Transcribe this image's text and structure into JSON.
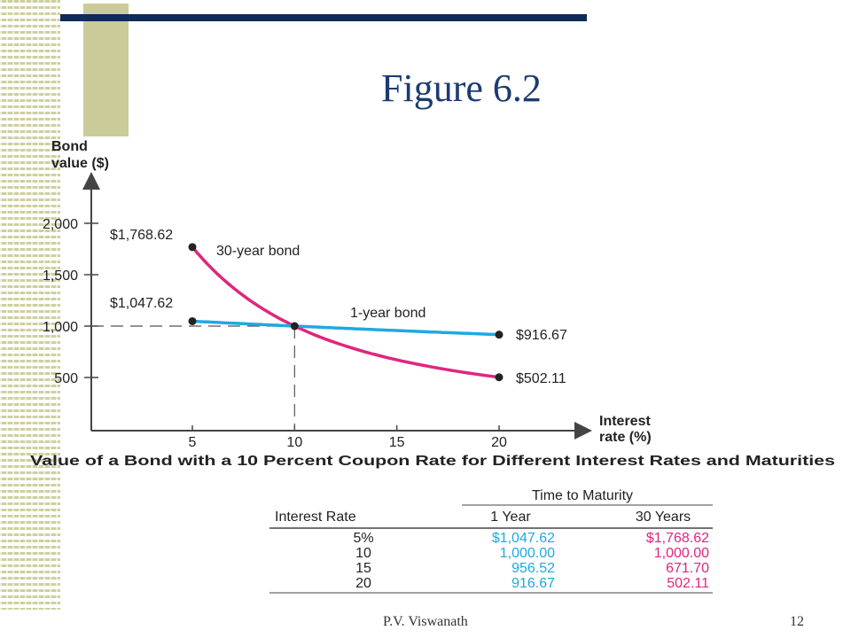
{
  "slide": {
    "title": "Figure 6.2",
    "author": "P.V. Viswanath",
    "page": "12"
  },
  "chart_data": {
    "type": "line",
    "ylabel_line1": "Bond",
    "ylabel_line2": "value ($)",
    "xlabel_line1": "Interest",
    "xlabel_line2": "rate (%)",
    "caption": "Value of a Bond with a 10 Percent Coupon Rate for Different Interest Rates and Maturities",
    "x_ticks": [
      "5",
      "10",
      "15",
      "20"
    ],
    "y_ticks": [
      "2,000",
      "1,500",
      "1,000",
      "500"
    ],
    "y_tick_values": [
      2000,
      1500,
      1000,
      500
    ],
    "x_tick_values": [
      5,
      10,
      15,
      20
    ],
    "xlim": [
      0,
      24
    ],
    "ylim": [
      0,
      2300
    ],
    "series": [
      {
        "name": "30-year bond",
        "color": "#e0257f",
        "x": [
          5,
          10,
          15,
          20
        ],
        "y": [
          1768.62,
          1000.0,
          671.7,
          502.11
        ],
        "start_label": "$1,768.62",
        "end_label": "$502.11"
      },
      {
        "name": "1-year bond",
        "color": "#1ea9e1",
        "x": [
          5,
          10,
          15,
          20
        ],
        "y": [
          1047.62,
          1000.0,
          956.52,
          916.67
        ],
        "start_label": "$1,047.62",
        "end_label": "$916.67"
      }
    ]
  },
  "table": {
    "group_header": "Time to Maturity",
    "col_rate": "Interest Rate",
    "col_1yr": "1 Year",
    "col_30yr": "30 Years",
    "rows": [
      {
        "rate": "5%",
        "one": "$1,047.62",
        "thirty": "$1,768.62"
      },
      {
        "rate": "10",
        "one": "1,000.00",
        "thirty": "1,000.00"
      },
      {
        "rate": "15",
        "one": "956.52",
        "thirty": "671.70"
      },
      {
        "rate": "20",
        "one": "916.67",
        "thirty": "502.11"
      }
    ],
    "color_1yr": "#1ea9e1",
    "color_30yr": "#e0257f"
  }
}
